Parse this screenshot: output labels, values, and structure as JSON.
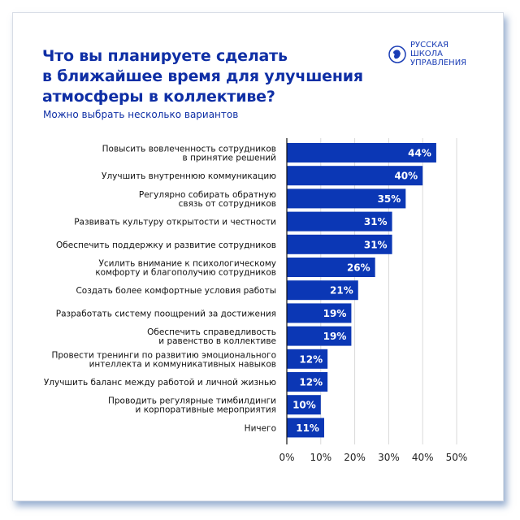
{
  "header": {
    "title_lines": [
      "Что вы планируете сделать",
      "в ближайшее время для улучшения",
      "атмосферы в коллективе?"
    ],
    "subtitle": "Можно выбрать несколько вариантов"
  },
  "logo": {
    "lines": [
      "РУССКАЯ",
      "ШКОЛА",
      "УПРАВЛЕНИЯ"
    ]
  },
  "colors": {
    "bar": "#0b37b5",
    "title": "#0f2fa5",
    "grid": "#d9d9d9"
  },
  "chart_data": {
    "type": "bar",
    "orientation": "horizontal",
    "categories": [
      [
        "Повысить вовлеченность сотрудников",
        "в принятие решений"
      ],
      [
        "Улучшить внутреннюю коммуникацию"
      ],
      [
        "Регулярно собирать обратную",
        "связь от сотрудников"
      ],
      [
        "Развивать культуру открытости и честности"
      ],
      [
        "Обеспечить поддержку и развитие сотрудников"
      ],
      [
        "Усилить внимание к психологическому",
        "комфорту и благополучию сотрудников"
      ],
      [
        "Создать более комфортные условия работы"
      ],
      [
        "Разработать систему поощрений за достижения"
      ],
      [
        "Обеспечить справедливость",
        "и равенство в коллективе"
      ],
      [
        "Провести тренинги по развитию эмоционального",
        "интеллекта и коммуникативных навыков"
      ],
      [
        "Улучшить баланс между работой и личной жизнью"
      ],
      [
        "Проводить регулярные тимбилдинги",
        "и корпоративные мероприятия"
      ],
      [
        "Ничего"
      ]
    ],
    "values": [
      44,
      40,
      35,
      31,
      31,
      26,
      21,
      19,
      19,
      12,
      12,
      10,
      11
    ],
    "data_labels": [
      "44%",
      "40%",
      "35%",
      "31%",
      "31%",
      "26%",
      "21%",
      "19%",
      "19%",
      "12%",
      "12%",
      "10%",
      "11%"
    ],
    "xlim": [
      0,
      50
    ],
    "xticks": [
      "0%",
      "10%",
      "20%",
      "30%",
      "40%",
      "50%"
    ],
    "grid": "vertical",
    "legend": "none"
  }
}
